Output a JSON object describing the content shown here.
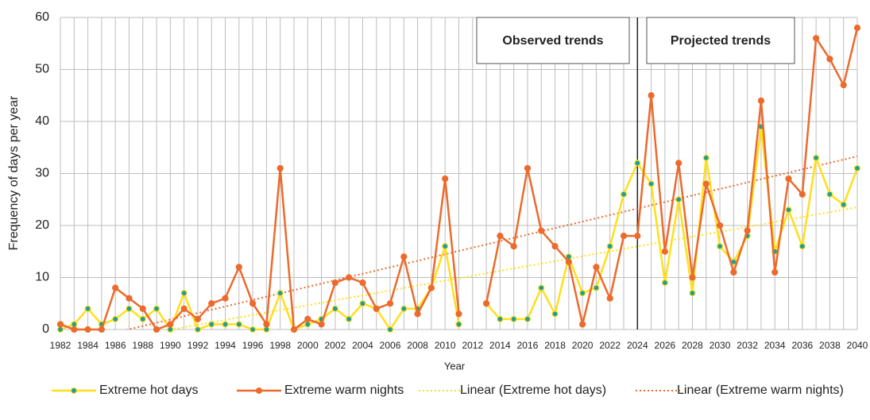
{
  "chart_data": {
    "type": "line",
    "xlabel": "Year",
    "ylabel": "Frequency of days per year",
    "x": [
      1982,
      1983,
      1984,
      1985,
      1986,
      1987,
      1988,
      1989,
      1990,
      1991,
      1992,
      1993,
      1994,
      1995,
      1996,
      1997,
      1998,
      1999,
      2000,
      2001,
      2002,
      2003,
      2004,
      2005,
      2006,
      2007,
      2008,
      2009,
      2010,
      2011,
      2012,
      2013,
      2014,
      2015,
      2016,
      2017,
      2018,
      2019,
      2020,
      2021,
      2022,
      2023,
      2024,
      2025,
      2026,
      2027,
      2028,
      2029,
      2030,
      2031,
      2032,
      2033,
      2034,
      2035,
      2036,
      2037,
      2038,
      2039,
      2040
    ],
    "series": [
      {
        "name": "Extreme hot days",
        "color": "#ffdf1a",
        "marker_color": "#1f9e9a",
        "values": [
          0,
          1,
          4,
          1,
          2,
          4,
          2,
          4,
          0,
          7,
          0,
          1,
          1,
          1,
          0,
          0,
          7,
          0,
          1,
          2,
          4,
          2,
          5,
          4,
          0,
          4,
          4,
          8,
          16,
          1,
          null,
          5,
          2,
          2,
          2,
          8,
          3,
          14,
          7,
          8,
          16,
          26,
          32,
          28,
          9,
          25,
          7,
          33,
          16,
          13,
          18,
          39,
          15,
          23,
          16,
          33,
          26,
          24,
          31
        ]
      },
      {
        "name": "Extreme warm nights",
        "color": "#ec6a2c",
        "marker_color": "#ec6a2c",
        "values": [
          1,
          0,
          0,
          0,
          8,
          6,
          4,
          0,
          1,
          4,
          2,
          5,
          6,
          12,
          5,
          1,
          31,
          0,
          2,
          1,
          9,
          10,
          9,
          4,
          5,
          14,
          3,
          8,
          29,
          3,
          null,
          5,
          18,
          16,
          31,
          19,
          16,
          13,
          1,
          12,
          6,
          18,
          18,
          45,
          15,
          32,
          10,
          28,
          20,
          11,
          19,
          44,
          11,
          29,
          26,
          56,
          52,
          47,
          58
        ]
      }
    ],
    "trendlines": [
      {
        "name": "Linear (Extreme hot days)",
        "color": "#ffdf1a",
        "x": [
          1982,
          2040
        ],
        "values": [
          -3.8,
          23.5
        ]
      },
      {
        "name": "Linear (Extreme warm nights)",
        "color": "#ec6a2c",
        "x": [
          1982,
          2040
        ],
        "values": [
          -3.1,
          33.3
        ]
      }
    ],
    "annotations": [
      {
        "text": "Observed trends"
      },
      {
        "text": "Projected trends"
      }
    ],
    "divider_x": 2024,
    "xlim": [
      1982,
      2040
    ],
    "ylim": [
      0,
      60
    ],
    "xticks": [
      1982,
      1984,
      1986,
      1988,
      1990,
      1992,
      1994,
      1996,
      1998,
      2000,
      2002,
      2004,
      2006,
      2008,
      2010,
      2012,
      2014,
      2016,
      2018,
      2020,
      2022,
      2024,
      2026,
      2028,
      2030,
      2032,
      2034,
      2036,
      2038,
      2040
    ],
    "yticks": [
      0,
      10,
      20,
      30,
      40,
      50,
      60
    ],
    "grid": true,
    "legend": "bottom"
  }
}
